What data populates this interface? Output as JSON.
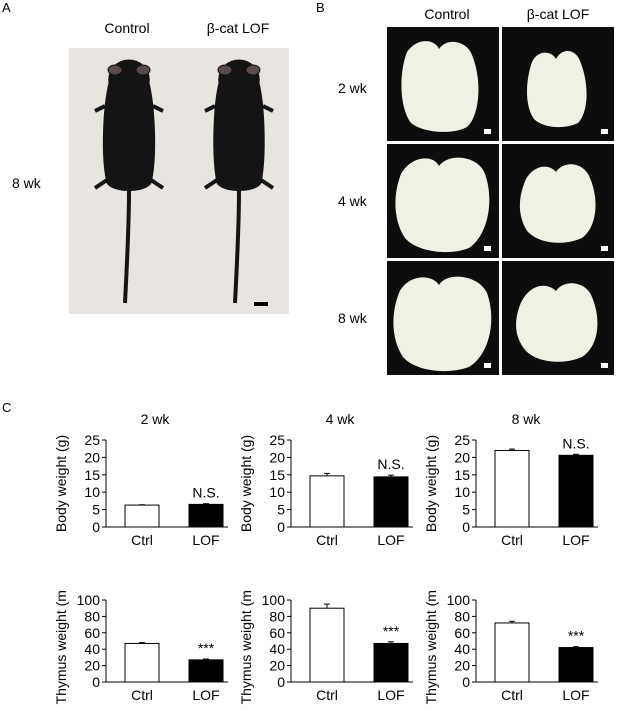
{
  "panel_a": {
    "letter": "A",
    "conditions": [
      "Control",
      "β-cat LOF"
    ],
    "age_label": "8 wk"
  },
  "panel_b": {
    "letter": "B",
    "conditions": [
      "Control",
      "β-cat LOF"
    ],
    "rows": [
      "2 wk",
      "4 wk",
      "8 wk"
    ]
  },
  "panel_c": {
    "letter": "C",
    "columns": [
      "2 wk",
      "4 wk",
      "8 wk"
    ]
  },
  "colors": {
    "control_bar": "#ffffff",
    "lof_bar": "#000000",
    "mouse": "#141414",
    "photo_bg": "#e8e4df",
    "thymus": "#f0f0e4"
  },
  "chart_data": [
    {
      "type": "bar",
      "id": "bw-2wk",
      "ylabel": "Body weight (g)",
      "categories": [
        "Ctrl",
        "LOF"
      ],
      "values": [
        6.3,
        6.5
      ],
      "errors": [
        0.1,
        0.2
      ],
      "ylim": [
        0,
        25
      ],
      "yticks": [
        0,
        5,
        10,
        15,
        20,
        25
      ],
      "annotation": "N.S.",
      "annotate_index": 1
    },
    {
      "type": "bar",
      "id": "bw-4wk",
      "ylabel": "Body weight (g)",
      "categories": [
        "Ctrl",
        "LOF"
      ],
      "values": [
        14.7,
        14.4
      ],
      "errors": [
        0.7,
        0.5
      ],
      "ylim": [
        0,
        25
      ],
      "yticks": [
        0,
        5,
        10,
        15,
        20,
        25
      ],
      "annotation": "N.S.",
      "annotate_index": 1
    },
    {
      "type": "bar",
      "id": "bw-8wk",
      "ylabel": "Body weight (g)",
      "categories": [
        "Ctrl",
        "LOF"
      ],
      "values": [
        22.0,
        20.6
      ],
      "errors": [
        0.4,
        0.3
      ],
      "ylim": [
        0,
        25
      ],
      "yticks": [
        0,
        5,
        10,
        15,
        20,
        25
      ],
      "annotation": "N.S.",
      "annotate_index": 1
    },
    {
      "type": "bar",
      "id": "tw-2wk",
      "ylabel": "Thymus weight (mg)",
      "categories": [
        "Ctrl",
        "LOF"
      ],
      "values": [
        47,
        27
      ],
      "errors": [
        1,
        1
      ],
      "ylim": [
        0,
        100
      ],
      "yticks": [
        0,
        20,
        40,
        60,
        80,
        100
      ],
      "annotation": "***",
      "annotate_index": 1
    },
    {
      "type": "bar",
      "id": "tw-4wk",
      "ylabel": "Thymus weight (mg)",
      "categories": [
        "Ctrl",
        "LOF"
      ],
      "values": [
        90,
        47
      ],
      "errors": [
        5,
        2
      ],
      "ylim": [
        0,
        100
      ],
      "yticks": [
        0,
        20,
        40,
        60,
        80,
        100
      ],
      "annotation": "***",
      "annotate_index": 1
    },
    {
      "type": "bar",
      "id": "tw-8wk",
      "ylabel": "Thymus weight (mg)",
      "categories": [
        "Ctrl",
        "LOF"
      ],
      "values": [
        72,
        42
      ],
      "errors": [
        2,
        1
      ],
      "ylim": [
        0,
        100
      ],
      "yticks": [
        0,
        20,
        40,
        60,
        80,
        100
      ],
      "annotation": "***",
      "annotate_index": 1
    }
  ]
}
